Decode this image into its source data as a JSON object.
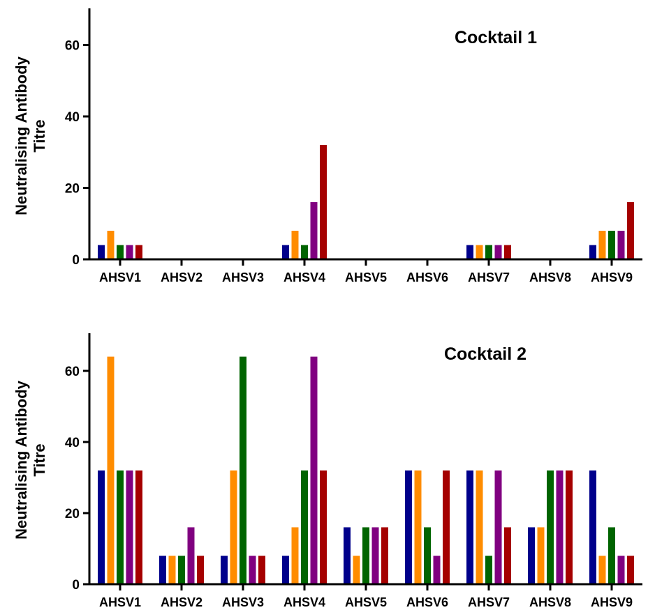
{
  "chart_data": [
    {
      "type": "bar",
      "title": "Cocktail 1",
      "ylabel_line1": "Neutralising Antibody",
      "ylabel_line2": "Titre",
      "ylim": [
        0,
        70
      ],
      "yticks": [
        0,
        20,
        40,
        60
      ],
      "categories": [
        "AHSV1",
        "AHSV2",
        "AHSV3",
        "AHSV4",
        "AHSV5",
        "AHSV6",
        "AHSV7",
        "AHSV8",
        "AHSV9"
      ],
      "colors": [
        "#00008B",
        "#FF8C00",
        "#006400",
        "#800080",
        "#A50000"
      ],
      "series": [
        {
          "values": [
            4,
            0,
            0,
            4,
            0,
            0,
            4,
            0,
            4
          ]
        },
        {
          "values": [
            8,
            0,
            0,
            8,
            0,
            0,
            4,
            0,
            8
          ]
        },
        {
          "values": [
            4,
            0,
            0,
            4,
            0,
            0,
            4,
            0,
            8
          ]
        },
        {
          "values": [
            4,
            0,
            0,
            16,
            0,
            0,
            4,
            0,
            8
          ]
        },
        {
          "values": [
            4,
            0,
            0,
            32,
            0,
            0,
            4,
            0,
            16
          ]
        }
      ]
    },
    {
      "type": "bar",
      "title": "Cocktail 2",
      "ylabel_line1": "Neutralising Antibody",
      "ylabel_line2": "Titre",
      "ylim": [
        0,
        70
      ],
      "yticks": [
        0,
        20,
        40,
        60
      ],
      "categories": [
        "AHSV1",
        "AHSV2",
        "AHSV3",
        "AHSV4",
        "AHSV5",
        "AHSV6",
        "AHSV7",
        "AHSV8",
        "AHSV9"
      ],
      "colors": [
        "#00008B",
        "#FF8C00",
        "#006400",
        "#800080",
        "#A50000"
      ],
      "series": [
        {
          "values": [
            32,
            8,
            8,
            8,
            16,
            32,
            32,
            16,
            32
          ]
        },
        {
          "values": [
            64,
            8,
            32,
            16,
            8,
            32,
            32,
            16,
            8
          ]
        },
        {
          "values": [
            32,
            8,
            64,
            32,
            16,
            16,
            8,
            32,
            16
          ]
        },
        {
          "values": [
            32,
            16,
            8,
            64,
            16,
            8,
            32,
            32,
            8
          ]
        },
        {
          "values": [
            32,
            8,
            8,
            32,
            16,
            32,
            16,
            32,
            8
          ]
        }
      ]
    }
  ]
}
